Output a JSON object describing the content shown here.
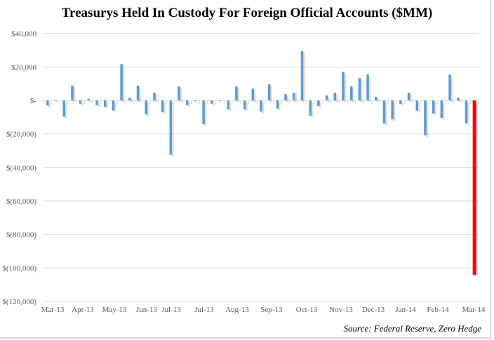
{
  "chart_data": {
    "type": "bar",
    "title": "Treasurys Held In Custody For Foreign Official Accounts ($MM)",
    "source": "Source: Federal Reserve, Zero Hedge",
    "xlabel": "",
    "ylabel": "",
    "ylim": [
      -120000,
      40000
    ],
    "yticks": [
      40000,
      20000,
      0,
      -20000,
      -40000,
      -60000,
      -80000,
      -100000,
      -120000
    ],
    "ytick_labels": [
      "$40,000",
      "$20,000",
      "$-",
      "$(20,000)",
      "$(40,000)",
      "$(60,000)",
      "$(80,000)",
      "$(100,000)",
      "$(120,000)"
    ],
    "xtick_labels": [
      "Mar-13",
      "Apr-13",
      "May-13",
      "Jun-13",
      "Jul-13",
      "Jul-13",
      "Aug-13",
      "Sep-13",
      "Oct-13",
      "Nov-13",
      "Dec-13",
      "Jan-14",
      "Feb-14",
      "Mar-14"
    ],
    "grid": true,
    "bar_color": "#5b9bd5",
    "highlight_color": "#ff0000",
    "values": [
      -3000,
      -500,
      -9600,
      8900,
      -2000,
      1000,
      -2800,
      -3700,
      -6000,
      21700,
      1700,
      8900,
      -8300,
      4600,
      -6900,
      -32500,
      8400,
      -2800,
      -500,
      -14100,
      -2000,
      -500,
      -5300,
      8400,
      -5300,
      7100,
      -6600,
      9700,
      -4900,
      3800,
      4600,
      29400,
      -9100,
      -3300,
      3000,
      4600,
      17200,
      8400,
      13400,
      15500,
      2100,
      -13700,
      -11200,
      -2000,
      4600,
      -6100,
      -20800,
      -7800,
      -10400,
      15500,
      1700,
      -13700,
      -104200
    ],
    "highlight_index": 52
  }
}
